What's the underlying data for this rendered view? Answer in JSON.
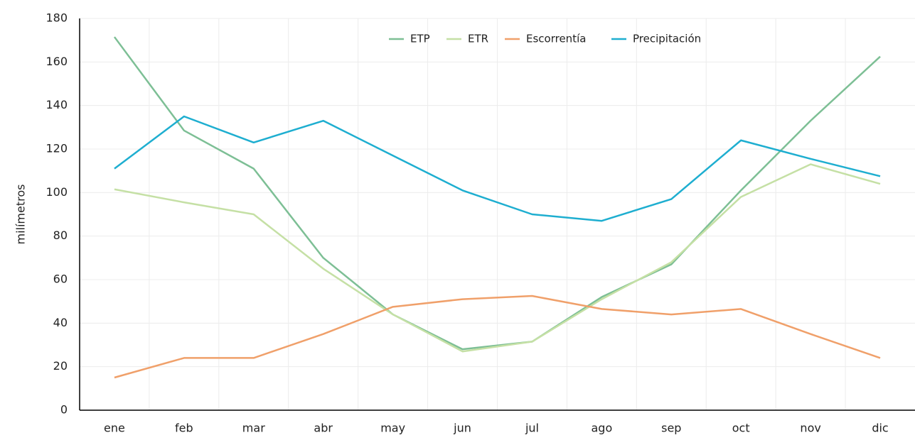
{
  "chart_data": {
    "type": "line",
    "y_label": "milímetros",
    "categories": [
      "ene",
      "feb",
      "mar",
      "abr",
      "may",
      "jun",
      "jul",
      "ago",
      "sep",
      "oct",
      "nov",
      "dic"
    ],
    "series": [
      {
        "name": "ETP",
        "color": "#7dbf95",
        "values": [
          171.5,
          128.5,
          111,
          70,
          44,
          28,
          31.5,
          52,
          67,
          101,
          133,
          162.5
        ]
      },
      {
        "name": "ETR",
        "color": "#c5e0a5",
        "values": [
          101.5,
          95.5,
          90,
          65,
          44,
          27,
          31.5,
          51,
          68,
          98,
          113,
          104
        ]
      },
      {
        "name": "Escorrentía",
        "color": "#f0a06a",
        "values": [
          15,
          24,
          24,
          35,
          47.5,
          51,
          52.5,
          46.5,
          44,
          46.5,
          35,
          24
        ]
      },
      {
        "name": "Precipitación",
        "color": "#1eaed0",
        "values": [
          111,
          135,
          123,
          133,
          117,
          101,
          90,
          87,
          97,
          124,
          115.5,
          107.5
        ]
      }
    ],
    "ylim": [
      0,
      180
    ],
    "yticks": [
      0,
      20,
      40,
      60,
      80,
      100,
      120,
      140,
      160,
      180
    ],
    "grid": true,
    "legend": "top"
  }
}
